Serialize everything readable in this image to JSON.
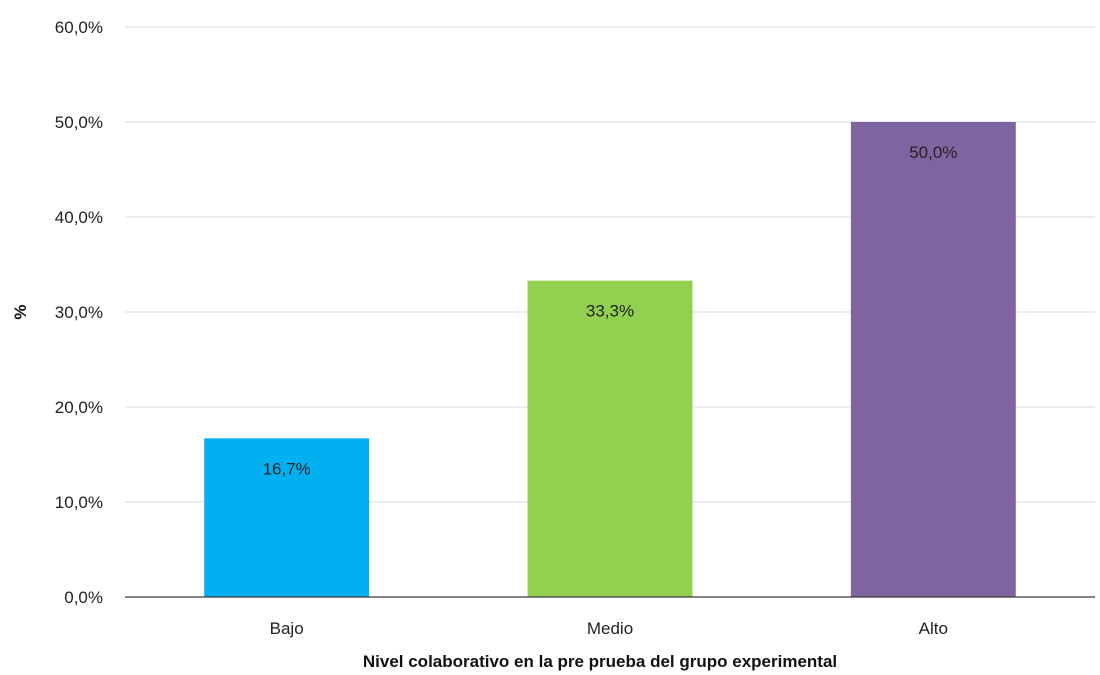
{
  "chart_data": {
    "type": "bar",
    "categories": [
      "Bajo",
      "Medio",
      "Alto"
    ],
    "values": [
      16.7,
      33.3,
      50.0
    ],
    "data_labels": [
      "16,7%",
      "33,3%",
      "50,0%"
    ],
    "colors": [
      "#00b0f0",
      "#92d050",
      "#8064a2"
    ],
    "title": "",
    "xlabel": "Nivel colaborativo en la pre prueba del grupo experimental",
    "ylabel": "%",
    "ylim": [
      0,
      60
    ],
    "yticks": [
      0,
      10,
      20,
      30,
      40,
      50,
      60
    ],
    "ytick_labels": [
      "0,0%",
      "10,0%",
      "20,0%",
      "30,0%",
      "40,0%",
      "50,0%",
      "60,0%"
    ],
    "grid": true,
    "legend": "none"
  }
}
